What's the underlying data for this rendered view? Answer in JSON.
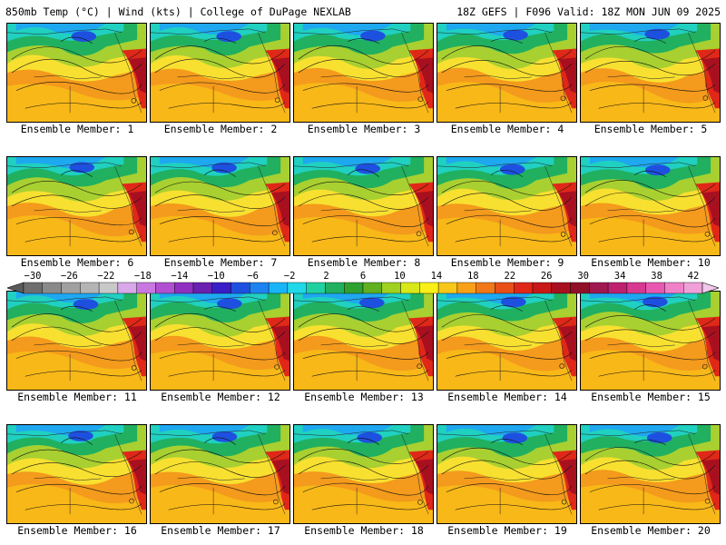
{
  "header": {
    "left_title": "850mb Temp (°C) | Wind (kts) | College of DuPage NEXLAB",
    "right_title": "18Z GEFS | F096 Valid: 18Z MON JUN 09 2025"
  },
  "panel_label_prefix": "Ensemble Member: ",
  "members": [
    1,
    2,
    3,
    4,
    5,
    6,
    7,
    8,
    9,
    10,
    11,
    12,
    13,
    14,
    15,
    16,
    17,
    18,
    19,
    20
  ],
  "colorbar": {
    "ticks": [
      "−30",
      "−26",
      "−22",
      "−18",
      "−14",
      "−10",
      "−6",
      "−2",
      "2",
      "6",
      "10",
      "14",
      "18",
      "22",
      "26",
      "30",
      "34",
      "38",
      "42"
    ],
    "colors": [
      "#6e6e6e",
      "#8a8a8a",
      "#a0a0a0",
      "#b4b4b4",
      "#c8c8c8",
      "#d8a8e8",
      "#c878e0",
      "#b050d0",
      "#9030c0",
      "#6a20b0",
      "#3a1ec8",
      "#1e50e0",
      "#1e82f0",
      "#18b4f8",
      "#20d8e8",
      "#20d0a0",
      "#20b060",
      "#30a030",
      "#60b020",
      "#a0d020",
      "#d8e818",
      "#f8f018",
      "#f8c818",
      "#f8a018",
      "#f07818",
      "#e85018",
      "#e02818",
      "#c81818",
      "#a81020",
      "#901028",
      "#a01850",
      "#c02070",
      "#d83890",
      "#e858b0",
      "#f080c8",
      "#f0a0d8"
    ]
  }
}
